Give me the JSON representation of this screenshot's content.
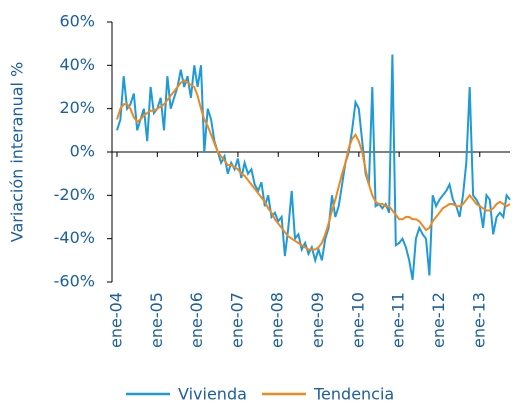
{
  "chart_data": {
    "type": "line",
    "y_label": "Variación interanual  %",
    "categories": [
      "ene-04",
      null,
      null,
      null,
      null,
      null,
      null,
      null,
      null,
      null,
      null,
      null,
      "ene-05",
      null,
      null,
      null,
      null,
      null,
      null,
      null,
      null,
      null,
      null,
      null,
      "ene-06",
      null,
      null,
      null,
      null,
      null,
      null,
      null,
      null,
      null,
      null,
      null,
      "ene-07",
      null,
      null,
      null,
      null,
      null,
      null,
      null,
      null,
      null,
      null,
      null,
      "ene-08",
      null,
      null,
      null,
      null,
      null,
      null,
      null,
      null,
      null,
      null,
      null,
      "ene-09",
      null,
      null,
      null,
      null,
      null,
      null,
      null,
      null,
      null,
      null,
      null,
      "ene-10",
      null,
      null,
      null,
      null,
      null,
      null,
      null,
      null,
      null,
      null,
      null,
      "ene-11",
      null,
      null,
      null,
      null,
      null,
      null,
      null,
      null,
      null,
      null,
      null,
      "ene-12",
      null,
      null,
      null,
      null,
      null,
      null,
      null,
      null,
      null,
      null,
      null,
      "ene-13",
      null,
      null,
      null,
      null,
      null,
      null,
      null,
      null,
      null
    ],
    "series": [
      {
        "name": "Vivienda",
        "color": "#1e9ad6",
        "values": [
          10,
          15,
          35,
          20,
          22,
          27,
          10,
          15,
          20,
          5,
          30,
          18,
          20,
          25,
          10,
          35,
          20,
          25,
          30,
          38,
          30,
          35,
          25,
          40,
          30,
          40,
          0,
          20,
          15,
          5,
          0,
          -5,
          -2,
          -10,
          -5,
          -8,
          -3,
          -12,
          -5,
          -10,
          -8,
          -15,
          -18,
          -14,
          -25,
          -20,
          -30,
          -28,
          -32,
          -30,
          -48,
          -35,
          -18,
          -40,
          -38,
          -45,
          -42,
          -47,
          -44,
          -50,
          -45,
          -50,
          -40,
          -35,
          -20,
          -30,
          -25,
          -15,
          -5,
          0,
          10,
          23,
          20,
          5,
          -10,
          -15,
          30,
          -25,
          -24,
          -26,
          -24,
          -28,
          45,
          -43,
          -42,
          -40,
          -44,
          -50,
          -59,
          -40,
          -35,
          -38,
          -40,
          -57,
          -20,
          -25,
          -22,
          -20,
          -18,
          -15,
          -22,
          -25,
          -30,
          -20,
          -5,
          30,
          -20,
          -22,
          -25,
          -35,
          -20,
          -22,
          -38,
          -30,
          -28,
          -30,
          -20,
          -22
        ]
      },
      {
        "name": "Tendencia",
        "color": "#f0871f",
        "values": [
          15,
          20,
          22,
          22,
          20,
          16,
          14,
          15,
          17,
          18,
          19,
          19,
          20,
          21,
          22,
          24,
          26,
          28,
          30,
          32,
          33,
          32,
          31,
          30,
          26,
          20,
          15,
          12,
          8,
          4,
          0,
          -2,
          -4,
          -6,
          -6,
          -7,
          -8,
          -10,
          -11,
          -13,
          -15,
          -17,
          -19,
          -21,
          -23,
          -26,
          -28,
          -31,
          -33,
          -35,
          -37,
          -39,
          -40,
          -41,
          -42,
          -43,
          -44,
          -45,
          -45,
          -45,
          -44,
          -42,
          -38,
          -33,
          -27,
          -22,
          -16,
          -10,
          -5,
          2,
          6,
          8,
          5,
          0,
          -8,
          -15,
          -20,
          -23,
          -24,
          -24,
          -25,
          -25,
          -27,
          -29,
          -31,
          -31,
          -30,
          -30,
          -31,
          -31,
          -32,
          -34,
          -36,
          -35,
          -32,
          -30,
          -28,
          -26,
          -25,
          -24,
          -24,
          -25,
          -25,
          -24,
          -22,
          -20,
          -22,
          -24,
          -25,
          -26,
          -27,
          -27,
          -26,
          -24,
          -23,
          -24,
          -25,
          -24
        ]
      }
    ],
    "ylim": [
      -60,
      60
    ],
    "yticks": [
      {
        "value": -60,
        "label": "-60%"
      },
      {
        "value": -40,
        "label": "-40%"
      },
      {
        "value": -20,
        "label": "-20%"
      },
      {
        "value": 0,
        "label": "0%"
      },
      {
        "value": 20,
        "label": "20%"
      },
      {
        "value": 40,
        "label": "40%"
      },
      {
        "value": 60,
        "label": "60%"
      }
    ],
    "legend": "bottom"
  }
}
